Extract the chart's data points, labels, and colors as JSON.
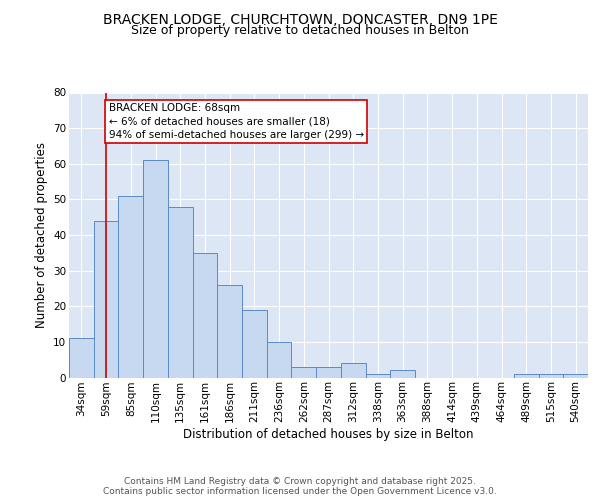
{
  "title1": "BRACKEN LODGE, CHURCHTOWN, DONCASTER, DN9 1PE",
  "title2": "Size of property relative to detached houses in Belton",
  "xlabel": "Distribution of detached houses by size in Belton",
  "ylabel": "Number of detached properties",
  "categories": [
    "34sqm",
    "59sqm",
    "85sqm",
    "110sqm",
    "135sqm",
    "161sqm",
    "186sqm",
    "211sqm",
    "236sqm",
    "262sqm",
    "287sqm",
    "312sqm",
    "338sqm",
    "363sqm",
    "388sqm",
    "414sqm",
    "439sqm",
    "464sqm",
    "489sqm",
    "515sqm",
    "540sqm"
  ],
  "values": [
    11,
    44,
    51,
    61,
    48,
    35,
    26,
    19,
    10,
    3,
    3,
    4,
    1,
    2,
    0,
    0,
    0,
    0,
    1,
    1,
    1
  ],
  "bar_color": "#c6d9f0",
  "bar_edge_color": "#5b8bc4",
  "vline_x": 1.0,
  "vline_color": "#cc0000",
  "annotation_text": "BRACKEN LODGE: 68sqm\n← 6% of detached houses are smaller (18)\n94% of semi-detached houses are larger (299) →",
  "annotation_box_color": "#ffffff",
  "annotation_box_edge": "#cc0000",
  "ylim": [
    0,
    80
  ],
  "yticks": [
    0,
    10,
    20,
    30,
    40,
    50,
    60,
    70,
    80
  ],
  "background_color": "#dce6f5",
  "grid_color": "#ffffff",
  "footer_text": "Contains HM Land Registry data © Crown copyright and database right 2025.\nContains public sector information licensed under the Open Government Licence v3.0.",
  "title_fontsize": 10,
  "subtitle_fontsize": 9,
  "axis_label_fontsize": 8.5,
  "tick_fontsize": 7.5,
  "annotation_fontsize": 7.5,
  "footer_fontsize": 6.5
}
